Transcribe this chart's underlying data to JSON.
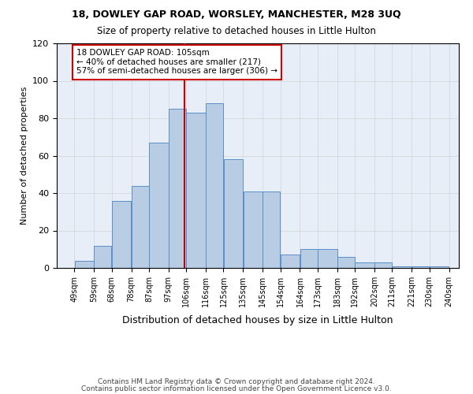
{
  "title1": "18, DOWLEY GAP ROAD, WORSLEY, MANCHESTER, M28 3UQ",
  "title2": "Size of property relative to detached houses in Little Hulton",
  "xlabel": "Distribution of detached houses by size in Little Hulton",
  "ylabel": "Number of detached properties",
  "bins": [
    49,
    59,
    68,
    78,
    87,
    97,
    106,
    116,
    125,
    135,
    145,
    154,
    164,
    173,
    183,
    192,
    202,
    211,
    221,
    230,
    240
  ],
  "bar_heights": [
    4,
    12,
    36,
    44,
    67,
    85,
    83,
    88,
    58,
    41,
    41,
    7,
    10,
    10,
    6,
    3,
    3,
    1,
    1,
    1
  ],
  "bar_color": "#b8cce4",
  "bar_edgecolor": "#5b8fc9",
  "property_line_x": 105,
  "annotation_text": "18 DOWLEY GAP ROAD: 105sqm\n← 40% of detached houses are smaller (217)\n57% of semi-detached houses are larger (306) →",
  "annotation_box_edgecolor": "#cc0000",
  "annotation_line_color": "#cc0000",
  "ylim": [
    0,
    120
  ],
  "yticks": [
    0,
    20,
    40,
    60,
    80,
    100,
    120
  ],
  "footer1": "Contains HM Land Registry data © Crown copyright and database right 2024.",
  "footer2": "Contains public sector information licensed under the Open Government Licence v3.0.",
  "background_color": "#e8eef8",
  "plot_background": "#ffffff"
}
